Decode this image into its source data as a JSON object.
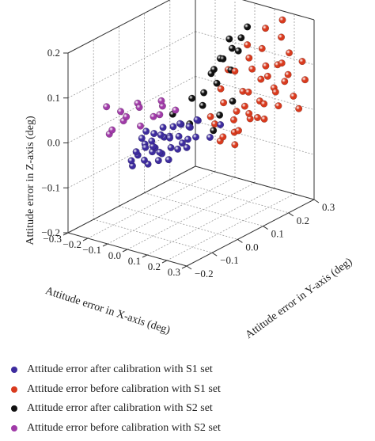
{
  "chart_data": {
    "type": "scatter",
    "projection": "3d",
    "title": "",
    "xlabel": "Attitude error in X-axis (deg)",
    "ylabel": "Attitude error in Y-axis (deg)",
    "zlabel": "Attitude error in Z-axis (deg)",
    "xlim": [
      -0.3,
      0.3
    ],
    "ylim": [
      -0.2,
      0.3
    ],
    "zlim": [
      -0.2,
      0.2
    ],
    "x_ticks": [
      "−0.3",
      "−0.2",
      "−0.1",
      "0.0",
      "0.1",
      "0.2",
      "0.3"
    ],
    "y_ticks": [
      "−0.2",
      "−0.1",
      "0.0",
      "0.1",
      "0.2",
      "0.3"
    ],
    "z_ticks": [
      "−0.2",
      "−0.1",
      "0.0",
      "0.1",
      "0.2"
    ],
    "grid": true,
    "legend_position": "bottom",
    "series": [
      {
        "name": "Attitude error after calibration with S1 set",
        "color": "#3d2b9e",
        "points": [
          [
            0.02,
            -0.2,
            0.0
          ],
          [
            0.06,
            -0.18,
            0.0
          ],
          [
            0.0,
            -0.18,
            -0.02
          ],
          [
            -0.02,
            -0.15,
            0.0
          ],
          [
            0.04,
            -0.15,
            -0.02
          ],
          [
            -0.03,
            -0.12,
            0.02
          ],
          [
            0.02,
            -0.12,
            0.02
          ],
          [
            -0.05,
            -0.12,
            -0.02
          ],
          [
            0.06,
            -0.12,
            0.0
          ],
          [
            0.0,
            -0.1,
            0.0
          ],
          [
            0.04,
            -0.1,
            0.03
          ],
          [
            -0.04,
            -0.1,
            0.0
          ],
          [
            0.08,
            -0.1,
            -0.02
          ],
          [
            0.02,
            -0.08,
            -0.02
          ],
          [
            -0.02,
            -0.08,
            0.02
          ],
          [
            0.06,
            -0.08,
            0.02
          ],
          [
            0.1,
            -0.08,
            0.0
          ],
          [
            -0.06,
            -0.08,
            0.02
          ],
          [
            0.0,
            -0.06,
            0.03
          ],
          [
            0.04,
            -0.06,
            -0.01
          ],
          [
            0.08,
            -0.06,
            0.02
          ],
          [
            -0.04,
            -0.06,
            -0.02
          ],
          [
            0.02,
            -0.05,
            0.01
          ],
          [
            0.06,
            -0.04,
            0.04
          ],
          [
            0.1,
            -0.04,
            0.01
          ],
          [
            -0.02,
            -0.04,
            0.0
          ],
          [
            0.04,
            -0.02,
            0.03
          ],
          [
            0.12,
            -0.06,
            0.0
          ],
          [
            0.0,
            -0.02,
            0.02
          ],
          [
            0.08,
            -0.02,
            0.03
          ],
          [
            0.14,
            -0.04,
            0.02
          ],
          [
            0.06,
            0.0,
            0.02
          ],
          [
            0.1,
            0.0,
            0.04
          ],
          [
            0.02,
            0.0,
            -0.02
          ],
          [
            -0.08,
            -0.04,
            -0.04
          ],
          [
            0.08,
            -0.14,
            -0.01
          ],
          [
            0.12,
            -0.02,
            0.05
          ],
          [
            0.04,
            -0.16,
            0.02
          ],
          [
            0.2,
            0.01,
            0.04
          ],
          [
            0.16,
            0.0,
            0.01
          ]
        ]
      },
      {
        "name": "Attitude error before calibration with S1 set",
        "color": "#d93a1e",
        "points": [
          [
            0.24,
            0.05,
            0.02
          ],
          [
            0.26,
            0.08,
            0.04
          ],
          [
            0.22,
            0.09,
            0.06
          ],
          [
            0.28,
            0.12,
            0.03
          ],
          [
            0.2,
            0.12,
            0.08
          ],
          [
            0.24,
            0.15,
            0.05
          ],
          [
            0.26,
            0.18,
            0.07
          ],
          [
            0.22,
            0.18,
            0.1
          ],
          [
            0.18,
            0.15,
            0.12
          ],
          [
            0.28,
            0.2,
            0.09
          ],
          [
            0.2,
            0.22,
            0.06
          ],
          [
            0.24,
            0.22,
            0.12
          ],
          [
            0.16,
            0.2,
            0.08
          ],
          [
            0.26,
            0.25,
            0.04
          ],
          [
            0.22,
            0.26,
            0.08
          ],
          [
            0.18,
            0.25,
            0.1
          ],
          [
            0.14,
            0.22,
            0.14
          ],
          [
            0.28,
            0.28,
            0.07
          ],
          [
            0.2,
            0.28,
            0.12
          ],
          [
            0.16,
            0.28,
            0.15
          ],
          [
            0.24,
            0.3,
            0.1
          ],
          [
            0.1,
            0.2,
            0.12
          ],
          [
            0.12,
            0.25,
            0.09
          ],
          [
            0.08,
            0.16,
            0.1
          ],
          [
            0.3,
            0.16,
            0.05
          ],
          [
            0.3,
            0.24,
            0.02
          ],
          [
            0.14,
            0.12,
            0.03
          ],
          [
            0.18,
            0.08,
            0.0
          ],
          [
            0.1,
            0.1,
            0.05
          ],
          [
            0.06,
            0.12,
            0.07
          ],
          [
            0.12,
            0.05,
            0.02
          ],
          [
            0.16,
            0.04,
            -0.01
          ],
          [
            0.2,
            0.02,
            0.01
          ],
          [
            0.26,
            0.02,
            0.0
          ],
          [
            0.14,
            0.3,
            0.18
          ],
          [
            0.08,
            0.28,
            0.16
          ],
          [
            0.04,
            0.24,
            0.13
          ],
          [
            0.18,
            0.18,
            0.04
          ],
          [
            0.22,
            0.14,
            0.02
          ],
          [
            0.12,
            0.16,
            0.06
          ],
          [
            0.06,
            0.08,
            0.02
          ],
          [
            0.1,
            0.14,
            0.0
          ],
          [
            0.28,
            0.06,
            0.06
          ],
          [
            0.02,
            0.18,
            0.09
          ]
        ]
      },
      {
        "name": "Attitude error after calibration with S2 set",
        "color": "#111111",
        "points": [
          [
            0.0,
            0.14,
            0.1
          ],
          [
            0.02,
            0.16,
            0.12
          ],
          [
            -0.02,
            0.18,
            0.11
          ],
          [
            0.04,
            0.18,
            0.14
          ],
          [
            0.0,
            0.2,
            0.15
          ],
          [
            0.02,
            0.22,
            0.12
          ],
          [
            -0.04,
            0.16,
            0.08
          ],
          [
            0.04,
            0.12,
            0.08
          ],
          [
            0.06,
            0.16,
            0.1
          ],
          [
            0.0,
            0.1,
            0.06
          ],
          [
            -0.06,
            0.1,
            0.04
          ],
          [
            0.02,
            0.08,
            0.04
          ],
          [
            -0.02,
            0.06,
            0.0
          ],
          [
            0.06,
            0.2,
            0.16
          ],
          [
            0.08,
            0.1,
            0.02
          ],
          [
            -0.08,
            0.04,
            0.02
          ],
          [
            0.1,
            0.06,
            0.0
          ],
          [
            0.04,
            0.24,
            0.17
          ],
          [
            0.12,
            0.12,
            0.05
          ]
        ]
      },
      {
        "name": "Attitude error before calibration with S2 set",
        "color": "#a03aa8",
        "points": [
          [
            -0.22,
            -0.1,
            0.0
          ],
          [
            -0.2,
            -0.06,
            0.02
          ],
          [
            -0.16,
            -0.08,
            0.04
          ],
          [
            -0.14,
            -0.04,
            0.01
          ],
          [
            -0.18,
            -0.02,
            0.05
          ],
          [
            -0.12,
            -0.06,
            0.06
          ],
          [
            -0.1,
            -0.02,
            0.03
          ],
          [
            -0.24,
            -0.04,
            0.03
          ],
          [
            -0.08,
            0.0,
            0.05
          ],
          [
            -0.06,
            -0.02,
            0.07
          ],
          [
            -0.12,
            0.02,
            0.02
          ],
          [
            -0.18,
            -0.12,
            0.02
          ],
          [
            -0.26,
            -0.08,
            0.05
          ],
          [
            -0.04,
            0.02,
            0.04
          ]
        ]
      }
    ]
  }
}
